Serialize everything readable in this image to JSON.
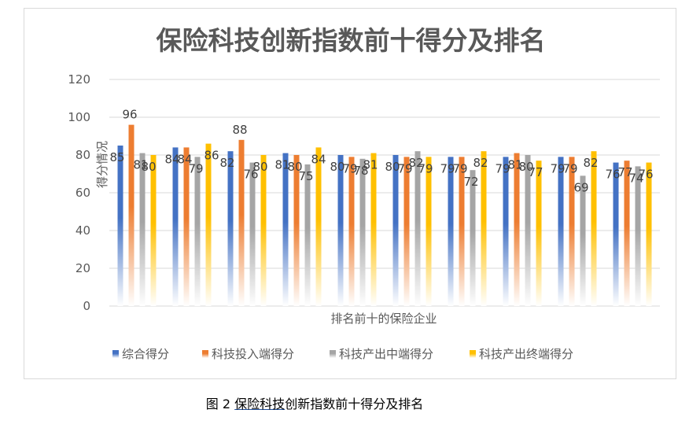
{
  "caption": {
    "figure_number": "图 2",
    "linked_part": "保险科技",
    "rest": "创新指数前十得分及排名"
  },
  "chart_data": {
    "type": "bar",
    "title": "保险科技创新指数前十得分及排名",
    "xlabel": "排名前十的保险企业",
    "ylabel": "得分情况",
    "ylim": [
      0,
      120
    ],
    "yticks": [
      0,
      20,
      40,
      60,
      80,
      100,
      120
    ],
    "grid": true,
    "legend_position": "bottom",
    "categories": [
      "",
      "",
      "",
      "",
      "",
      "",
      "",
      "",
      "",
      ""
    ],
    "series": [
      {
        "name": "综合得分",
        "color": "#4472c4",
        "values": [
          85,
          84,
          82,
          81,
          80,
          80,
          79,
          79,
          79,
          76
        ]
      },
      {
        "name": "科技投入端得分",
        "color": "#ed7d31",
        "values": [
          96,
          84,
          88,
          80,
          79,
          79,
          79,
          81,
          79,
          77
        ]
      },
      {
        "name": "科技产出中端得分",
        "color": "#a5a5a5",
        "values": [
          81,
          79,
          76,
          75,
          78,
          82,
          72,
          80,
          69,
          74
        ]
      },
      {
        "name": "科技产出终端得分",
        "color": "#ffc000",
        "values": [
          80,
          86,
          80,
          84,
          81,
          79,
          82,
          77,
          82,
          76
        ]
      }
    ]
  }
}
